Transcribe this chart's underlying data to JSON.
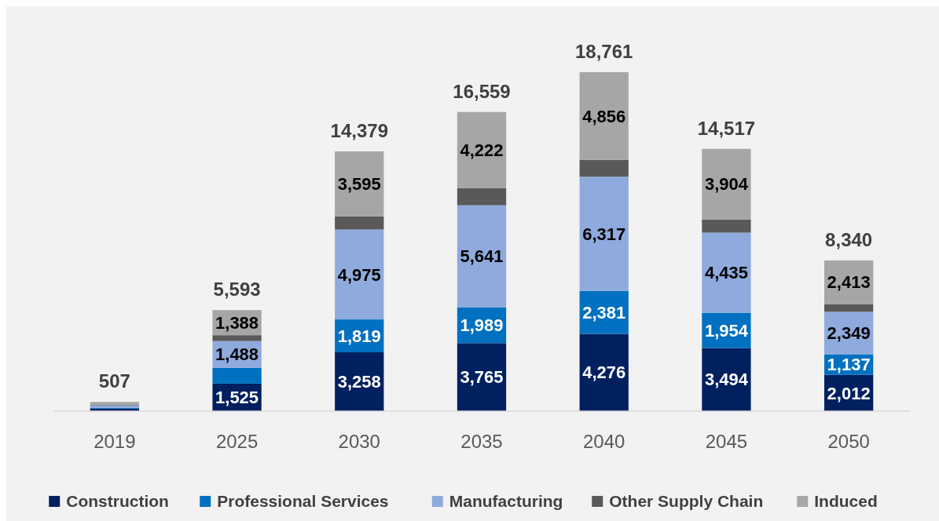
{
  "chart_data": {
    "type": "bar",
    "stacked": true,
    "categories": [
      "2019",
      "2025",
      "2030",
      "2035",
      "2040",
      "2045",
      "2050"
    ],
    "series": [
      {
        "name": "Construction",
        "color": "#002060",
        "values": [
          138,
          1525,
          3258,
          3765,
          4276,
          3494,
          2012
        ],
        "value_labels": [
          null,
          "1,525",
          "3,258",
          "3,765",
          "4,276",
          "3,494",
          "2,012"
        ]
      },
      {
        "name": "Professional Services",
        "color": "#0070c0",
        "values": [
          46,
          870,
          1819,
          1989,
          2381,
          1954,
          1137
        ],
        "value_labels": [
          null,
          null,
          "1,819",
          "1,989",
          "2,381",
          "1,954",
          "1,137"
        ]
      },
      {
        "name": "Manufacturing",
        "color": "#8faadc",
        "values": [
          139,
          1488,
          4975,
          5641,
          6317,
          4435,
          2349
        ],
        "value_labels": [
          null,
          "1,488",
          "4,975",
          "5,641",
          "6,317",
          "4,435",
          "2,349"
        ]
      },
      {
        "name": "Other Supply Chain",
        "color": "#595959",
        "values": [
          37,
          322,
          732,
          942,
          931,
          730,
          429
        ]
      },
      {
        "name": "Induced",
        "color": "#a6a6a6",
        "values": [
          147,
          1388,
          3595,
          4222,
          4856,
          3904,
          2413
        ],
        "value_labels": [
          null,
          "1,388",
          "3,595",
          "4,222",
          "4,856",
          "3,904",
          "2,413"
        ]
      }
    ],
    "totals": [
      "507",
      "5,593",
      "14,379",
      "16,559",
      "18,761",
      "14,517",
      "8,340"
    ],
    "legend": "bottom"
  }
}
